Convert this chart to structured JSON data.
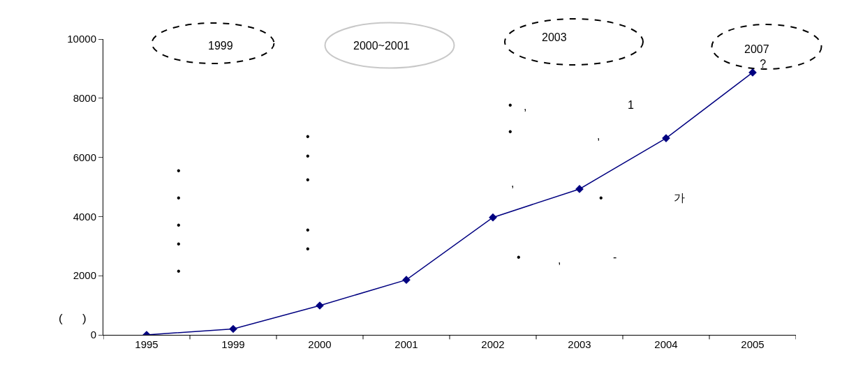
{
  "chart_data": {
    "type": "line",
    "categories": [
      "1995",
      "1999",
      "2000",
      "2001",
      "2002",
      "2003",
      "2004",
      "2005"
    ],
    "series": [
      {
        "color": "#000080",
        "values": [
          0,
          200,
          990,
          1860,
          3970,
          4930,
          6650,
          8870
        ]
      }
    ],
    "ylim": [
      0,
      10000
    ],
    "yticks": [
      0,
      2000,
      4000,
      6000,
      8000,
      10000
    ],
    "marker": "diamond",
    "line_style": "solid",
    "grid": false,
    "legend": false,
    "annotations": [
      "1999",
      "2000~2001",
      "2003",
      "2007\n    ?",
      "(      )",
      "•",
      "•",
      "•",
      "•",
      "•",
      "•",
      "•",
      "•",
      "•",
      "•",
      "•",
      ",",
      "1",
      "•",
      ",",
      ",",
      "•",
      "가",
      "•",
      ",",
      "-"
    ]
  }
}
